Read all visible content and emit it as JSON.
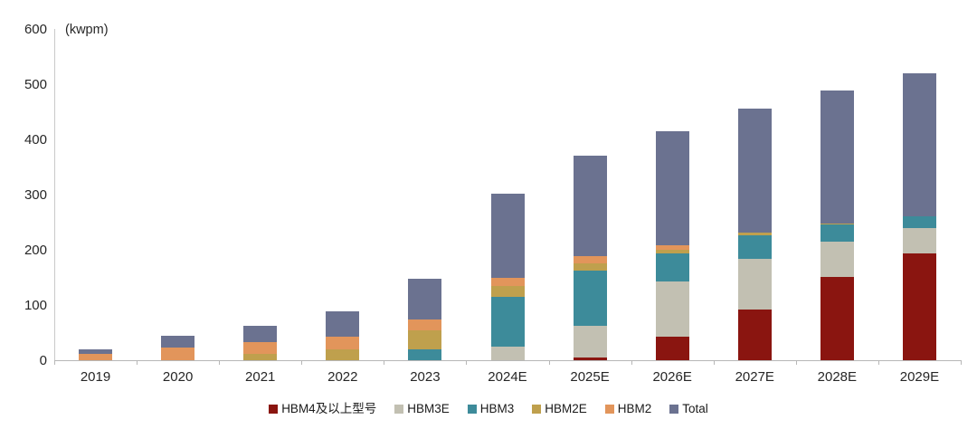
{
  "chart": {
    "unit_label": "(kwpm)",
    "axis_color": "#c9c9c9",
    "text_color": "#262626"
  },
  "chart_data": {
    "type": "bar",
    "stacked": true,
    "title": "",
    "ylabel": "(kwpm)",
    "ylim": [
      0,
      600
    ],
    "yticks": [
      0,
      100,
      200,
      300,
      400,
      500,
      600
    ],
    "grid": false,
    "legend_position": "bottom",
    "categories": [
      "2019",
      "2020",
      "2021",
      "2022",
      "2023",
      "2024E",
      "2025E",
      "2026E",
      "2027E",
      "2028E",
      "2029E"
    ],
    "series": [
      {
        "name": "HBM4及以上型号",
        "color": "#8a1510",
        "values": [
          0,
          0,
          0,
          0,
          0,
          0,
          5,
          42,
          91,
          150,
          194
        ]
      },
      {
        "name": "HBM3E",
        "color": "#c2c0b2",
        "values": [
          0,
          0,
          0,
          0,
          0,
          25,
          57,
          100,
          92,
          65,
          46
        ]
      },
      {
        "name": "HBM3",
        "color": "#3d8b9a",
        "values": [
          0,
          0,
          0,
          0,
          20,
          90,
          100,
          51,
          44,
          31,
          21
        ]
      },
      {
        "name": "HBM2E",
        "color": "#bfa04d",
        "values": [
          0,
          0,
          11,
          20,
          34,
          20,
          14,
          7,
          5,
          2,
          0
        ]
      },
      {
        "name": "HBM2",
        "color": "#e2955b",
        "values": [
          12,
          23,
          22,
          22,
          19,
          15,
          12,
          8,
          0,
          0,
          0
        ]
      },
      {
        "name": "Total",
        "color": "#6b7290",
        "values": [
          8,
          21,
          30,
          46,
          75,
          152,
          182,
          207,
          223,
          240,
          259
        ]
      }
    ],
    "stack_totals": [
      20,
      44,
      63,
      88,
      148,
      302,
      370,
      415,
      455,
      488,
      520
    ]
  }
}
